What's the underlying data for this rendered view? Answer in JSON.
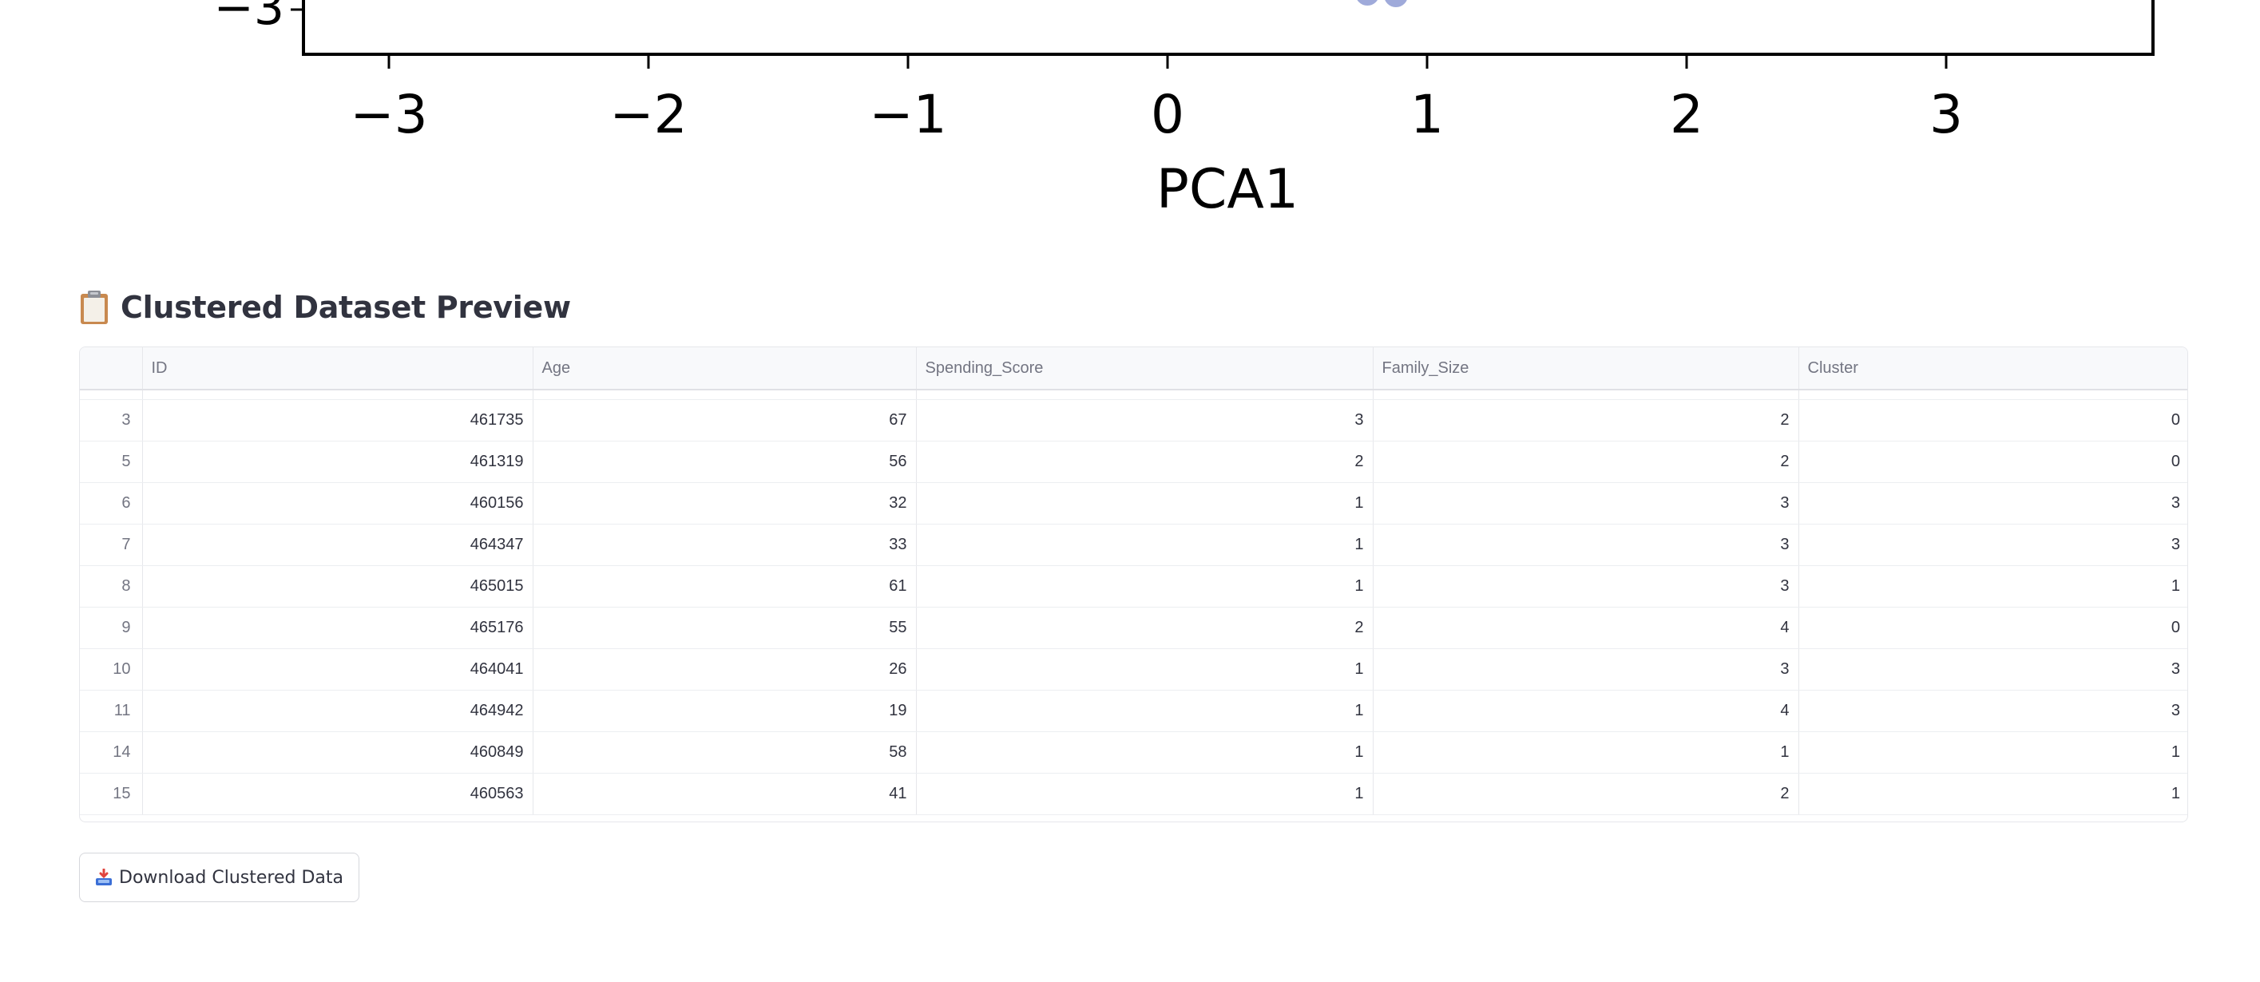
{
  "chart_data": {
    "type": "scatter",
    "xlabel": "PCA1",
    "x_ticks": [
      "−3",
      "−2",
      "−1",
      "0",
      "1",
      "2",
      "3"
    ],
    "x_tick_values": [
      -3,
      -2,
      -1,
      0,
      1,
      2,
      3
    ],
    "y_ticks_visible": [
      "−3"
    ],
    "y_tick_values_visible": [
      -3
    ],
    "xlim": [
      -3.33,
      3.8
    ],
    "visible_points": [
      {
        "x": 0.77,
        "y": -2.93
      },
      {
        "x": 0.88,
        "y": -2.95
      }
    ],
    "point_color": "#8e9bd3"
  },
  "section": {
    "emoji": "clipboard-icon",
    "title": "Clustered Dataset Preview"
  },
  "table": {
    "columns": [
      "",
      "ID",
      "Age",
      "Spending_Score",
      "Family_Size",
      "Cluster"
    ],
    "rows": [
      [
        "3",
        "461735",
        "67",
        "3",
        "2",
        "0"
      ],
      [
        "5",
        "461319",
        "56",
        "2",
        "2",
        "0"
      ],
      [
        "6",
        "460156",
        "32",
        "1",
        "3",
        "3"
      ],
      [
        "7",
        "464347",
        "33",
        "1",
        "3",
        "3"
      ],
      [
        "8",
        "465015",
        "61",
        "1",
        "3",
        "1"
      ],
      [
        "9",
        "465176",
        "55",
        "2",
        "4",
        "0"
      ],
      [
        "10",
        "464041",
        "26",
        "1",
        "3",
        "3"
      ],
      [
        "11",
        "464942",
        "19",
        "1",
        "4",
        "3"
      ],
      [
        "14",
        "460849",
        "58",
        "1",
        "1",
        "1"
      ],
      [
        "15",
        "460563",
        "41",
        "1",
        "2",
        "1"
      ]
    ]
  },
  "download": {
    "icon": "inbox-tray-icon",
    "label": "Download Clustered Data"
  }
}
